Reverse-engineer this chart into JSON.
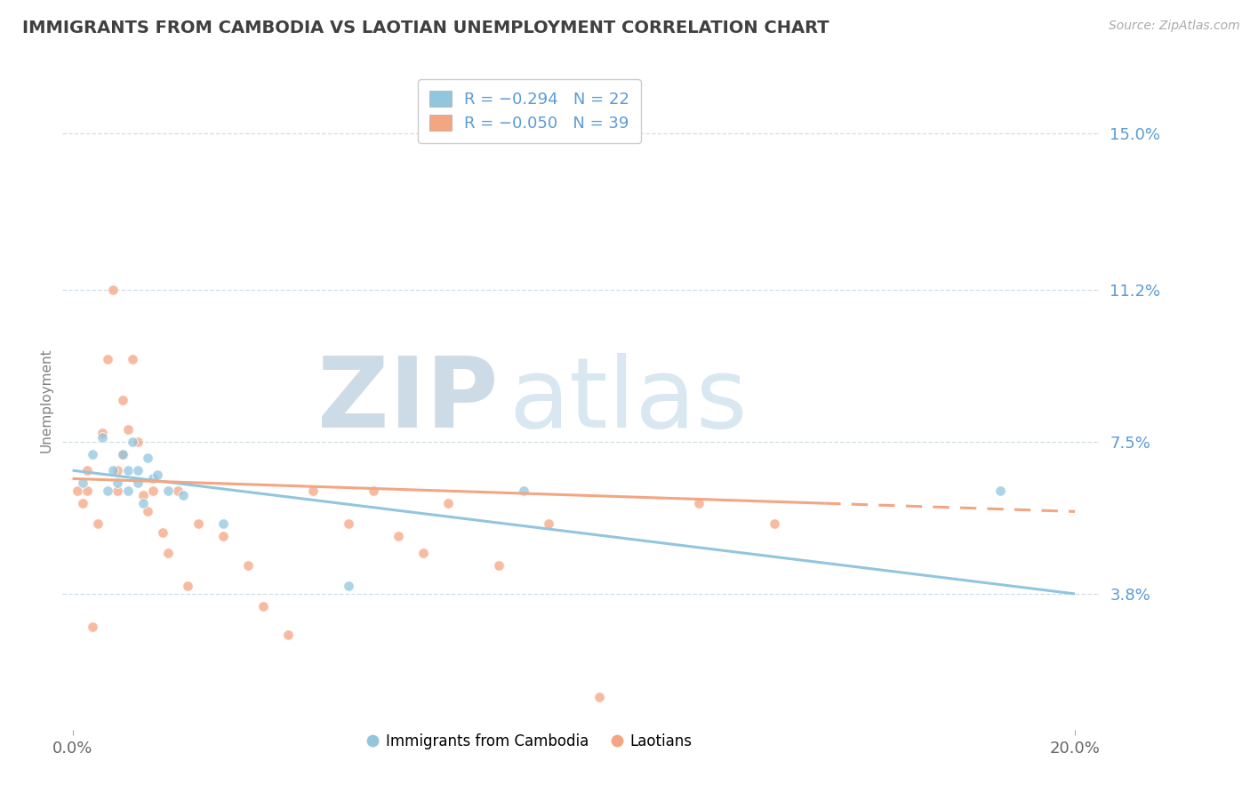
{
  "title": "IMMIGRANTS FROM CAMBODIA VS LAOTIAN UNEMPLOYMENT CORRELATION CHART",
  "source": "Source: ZipAtlas.com",
  "ylabel": "Unemployment",
  "xlim": [
    -0.002,
    0.205
  ],
  "ylim": [
    0.005,
    0.165
  ],
  "yticks": [
    0.038,
    0.075,
    0.112,
    0.15
  ],
  "ytick_labels": [
    "3.8%",
    "7.5%",
    "11.2%",
    "15.0%"
  ],
  "xticks": [
    0.0,
    0.2
  ],
  "xtick_labels": [
    "0.0%",
    "20.0%"
  ],
  "blue_color": "#92c5de",
  "pink_color": "#f4a582",
  "legend_r1": "R = -0.294",
  "legend_n1": "N = 22",
  "legend_r2": "R = -0.050",
  "legend_n2": "N = 39",
  "blue_scatter_x": [
    0.002,
    0.004,
    0.006,
    0.007,
    0.008,
    0.009,
    0.01,
    0.011,
    0.011,
    0.012,
    0.013,
    0.013,
    0.014,
    0.015,
    0.016,
    0.017,
    0.019,
    0.022,
    0.03,
    0.055,
    0.09,
    0.185
  ],
  "blue_scatter_y": [
    0.065,
    0.072,
    0.076,
    0.063,
    0.068,
    0.065,
    0.072,
    0.068,
    0.063,
    0.075,
    0.065,
    0.068,
    0.06,
    0.071,
    0.066,
    0.067,
    0.063,
    0.062,
    0.055,
    0.04,
    0.063,
    0.063
  ],
  "pink_scatter_x": [
    0.001,
    0.002,
    0.003,
    0.003,
    0.004,
    0.005,
    0.006,
    0.007,
    0.008,
    0.009,
    0.009,
    0.01,
    0.01,
    0.011,
    0.012,
    0.013,
    0.014,
    0.015,
    0.016,
    0.018,
    0.019,
    0.021,
    0.023,
    0.025,
    0.03,
    0.035,
    0.038,
    0.043,
    0.048,
    0.055,
    0.06,
    0.065,
    0.07,
    0.075,
    0.085,
    0.095,
    0.105,
    0.125,
    0.14
  ],
  "pink_scatter_y": [
    0.063,
    0.06,
    0.068,
    0.063,
    0.03,
    0.055,
    0.077,
    0.095,
    0.112,
    0.068,
    0.063,
    0.085,
    0.072,
    0.078,
    0.095,
    0.075,
    0.062,
    0.058,
    0.063,
    0.053,
    0.048,
    0.063,
    0.04,
    0.055,
    0.052,
    0.045,
    0.035,
    0.028,
    0.063,
    0.055,
    0.063,
    0.052,
    0.048,
    0.06,
    0.045,
    0.055,
    0.013,
    0.06,
    0.055
  ],
  "blue_line_x": [
    0.0,
    0.2
  ],
  "blue_line_y_start": 0.068,
  "blue_line_y_end": 0.038,
  "pink_line_x": [
    0.0,
    0.2
  ],
  "pink_line_y_start": 0.066,
  "pink_line_y_end": 0.058,
  "pink_line_solid_end": 0.15,
  "grid_color": "#d0dde8",
  "tick_color": "#5b9bd5",
  "title_color": "#404040",
  "ylabel_color": "#808080"
}
